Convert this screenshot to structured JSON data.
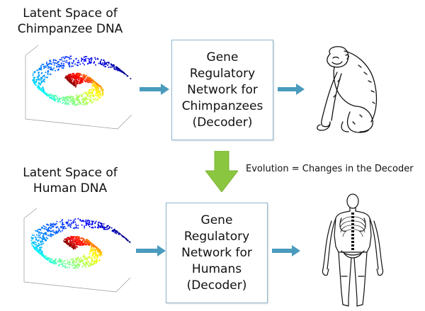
{
  "top": {
    "title": [
      "Latent Space of",
      "Chimpanzee DNA"
    ],
    "box": [
      "Gene",
      "Regulatory",
      "Network for",
      "Chimpanzees",
      "(Decoder)"
    ],
    "image_icon": "chimpanzee-sketch-icon"
  },
  "bottom": {
    "title": [
      "Latent Space of",
      "Human DNA"
    ],
    "box": [
      "Gene",
      "Regulatory",
      "Network for",
      "Humans",
      "(Decoder)"
    ],
    "image_icon": "human-anatomy-sketch-icon"
  },
  "evolution": {
    "label": "Evolution = Changes in the Decoder",
    "arrow_color": "#8ac63f"
  },
  "colors": {
    "flow_arrow": "#4a9bbd",
    "box_border": "#8eb6cf"
  }
}
